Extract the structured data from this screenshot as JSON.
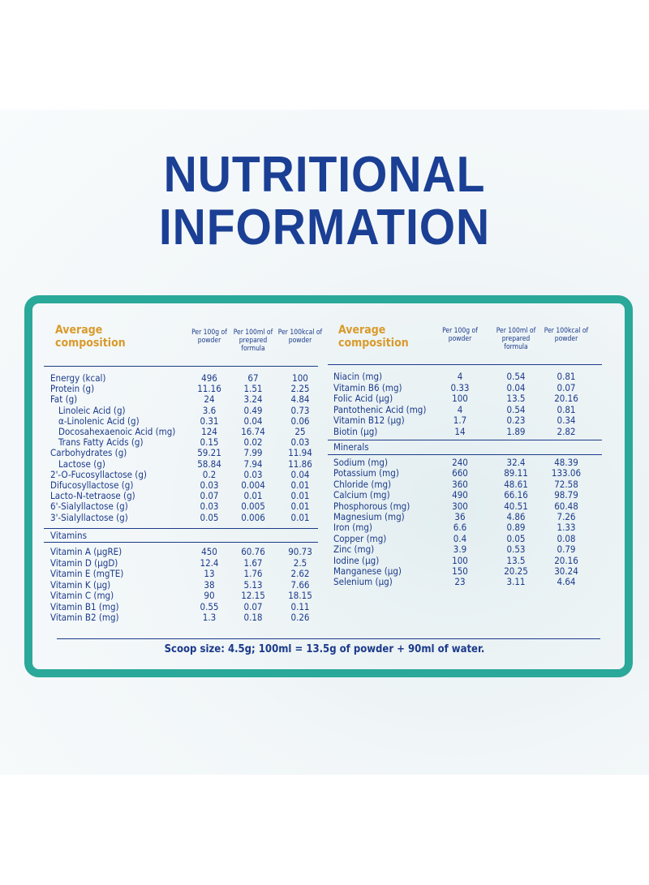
{
  "header": {
    "title_lines": [
      "NUTRITIONAL",
      "INFORMATION"
    ]
  },
  "left_table": {
    "heading": "Average composition",
    "columns": [
      "Per 100g of powder",
      "Per 100ml of prepared formula",
      "Per 100kcal of powder"
    ],
    "rows": [
      [
        "Energy (kcal)",
        "496",
        "67",
        "100"
      ],
      [
        "Protein (g)",
        "11.16",
        "1.51",
        "2.25"
      ],
      [
        "Fat (g)",
        "24",
        "3.24",
        "4.84"
      ],
      [
        "Linoleic Acid (g)",
        "3.6",
        "0.49",
        "0.73"
      ],
      [
        "α-Linolenic Acid (g)",
        "0.31",
        "0.04",
        "0.06"
      ],
      [
        "Docosahexaenoic Acid (mg)",
        "124",
        "16.74",
        "25"
      ],
      [
        "Trans Fatty Acids (g)",
        "0.15",
        "0.02",
        "0.03"
      ],
      [
        "Carbohydrates (g)",
        "59.21",
        "7.99",
        "11.94"
      ],
      [
        "Lactose (g)",
        "58.84",
        "7.94",
        "11.86"
      ],
      [
        "2'-O-Fucosyllactose (g)",
        "0.2",
        "0.03",
        "0.04"
      ],
      [
        "Difucosyllactose (g)",
        "0.03",
        "0.004",
        "0.01"
      ],
      [
        "Lacto-N-tetraose (g)",
        "0.07",
        "0.01",
        "0.01"
      ],
      [
        "6'-Sialyllactose (g)",
        "0.03",
        "0.005",
        "0.01"
      ],
      [
        "3'-Sialyllactose (g)",
        "0.05",
        "0.006",
        "0.01"
      ]
    ],
    "section": "Vitamins",
    "section_rows": [
      [
        "Vitamin A (µgRE)",
        "450",
        "60.76",
        "90.73"
      ],
      [
        "Vitamin D (µgD)",
        "12.4",
        "1.67",
        "2.5"
      ],
      [
        "Vitamin E (mgTE)",
        "13",
        "1.76",
        "2.62"
      ],
      [
        "Vitamin K (µg)",
        "38",
        "5.13",
        "7.66"
      ],
      [
        "Vitamin C (mg)",
        "90",
        "12.15",
        "18.15"
      ],
      [
        "Vitamin B1 (mg)",
        "0.55",
        "0.07",
        "0.11"
      ],
      [
        "Vitamin B2 (mg)",
        "1.3",
        "0.18",
        "0.26"
      ]
    ]
  },
  "right_table": {
    "heading": "Average composition",
    "columns": [
      "Per 100g of powder",
      "Per 100ml of prepared formula",
      "Per 100kcal of powder"
    ],
    "rows": [
      [
        "Niacin (mg)",
        "4",
        "0.54",
        "0.81"
      ],
      [
        "Vitamin B6 (mg)",
        "0.33",
        "0.04",
        "0.07"
      ],
      [
        "Folic Acid (µg)",
        "100",
        "13.5",
        "20.16"
      ],
      [
        "Pantothenic Acid (mg)",
        "4",
        "0.54",
        "0.81"
      ],
      [
        "Vitamin B12 (µg)",
        "1.7",
        "0.23",
        "0.34"
      ],
      [
        "Biotin (µg)",
        "14",
        "1.89",
        "2.82"
      ]
    ],
    "section": "Minerals",
    "section_rows": [
      [
        "Sodium (mg)",
        "240",
        "32.4",
        "48.39"
      ],
      [
        "Potassium (mg)",
        "660",
        "89.11",
        "133.06"
      ],
      [
        "Chloride (mg)",
        "360",
        "48.61",
        "72.58"
      ],
      [
        "Calcium (mg)",
        "490",
        "66.16",
        "98.79"
      ],
      [
        "Phosphorous (mg)",
        "300",
        "40.51",
        "60.48"
      ],
      [
        "Magnesium (mg)",
        "36",
        "4.86",
        "7.26"
      ],
      [
        "Iron (mg)",
        "6.6",
        "0.89",
        "1.33"
      ],
      [
        "Copper (mg)",
        "0.4",
        "0.05",
        "0.08"
      ],
      [
        "Zinc (mg)",
        "3.9",
        "0.53",
        "0.79"
      ],
      [
        "Iodine (µg)",
        "100",
        "13.5",
        "20.16"
      ],
      [
        "Manganese (µg)",
        "150",
        "20.25",
        "30.24"
      ],
      [
        "Selenium (µg)",
        "23",
        "3.11",
        "4.64"
      ]
    ]
  },
  "footer": "Scoop size: 4.5g; 100ml = 13.5g of powder + 90ml of water."
}
